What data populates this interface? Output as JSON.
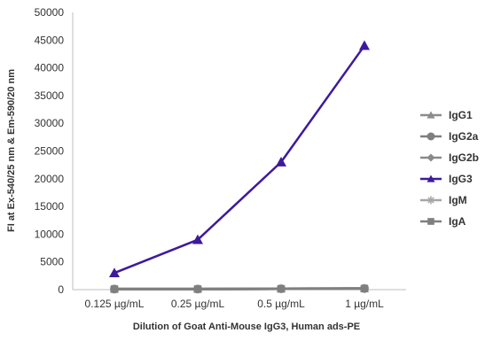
{
  "chart_data": {
    "type": "line",
    "xlabel": "Dilution of Goat Anti-Mouse IgG3, Human ads-PE",
    "ylabel": "FI at Ex-540/25 nm & Em-590/20 nm",
    "categories": [
      "0.125 µg/mL",
      "0.25 µg/mL",
      "0.5 µg/mL",
      "1 µg/mL"
    ],
    "ylim": [
      0,
      50000
    ],
    "yticks": [
      0,
      5000,
      10000,
      15000,
      20000,
      25000,
      30000,
      35000,
      40000,
      45000,
      50000
    ],
    "grid": false,
    "legend_position": "right",
    "series": [
      {
        "name": "IgG1",
        "values": [
          100,
          100,
          150,
          200
        ],
        "color": "#8c8c8c",
        "marker": "triangle"
      },
      {
        "name": "IgG2a",
        "values": [
          100,
          100,
          150,
          200
        ],
        "color": "#7f7f7f",
        "marker": "circle"
      },
      {
        "name": "IgG2b",
        "values": [
          100,
          100,
          150,
          200
        ],
        "color": "#8a8a8a",
        "marker": "diamond"
      },
      {
        "name": "IgG3",
        "values": [
          3000,
          9000,
          23000,
          44000
        ],
        "color": "#3d1a9c",
        "marker": "triangle"
      },
      {
        "name": "IgM",
        "values": [
          100,
          100,
          150,
          200
        ],
        "color": "#a6a6a6",
        "marker": "star"
      },
      {
        "name": "IgA",
        "values": [
          100,
          100,
          150,
          200
        ],
        "color": "#7f7f7f",
        "marker": "square"
      }
    ]
  }
}
